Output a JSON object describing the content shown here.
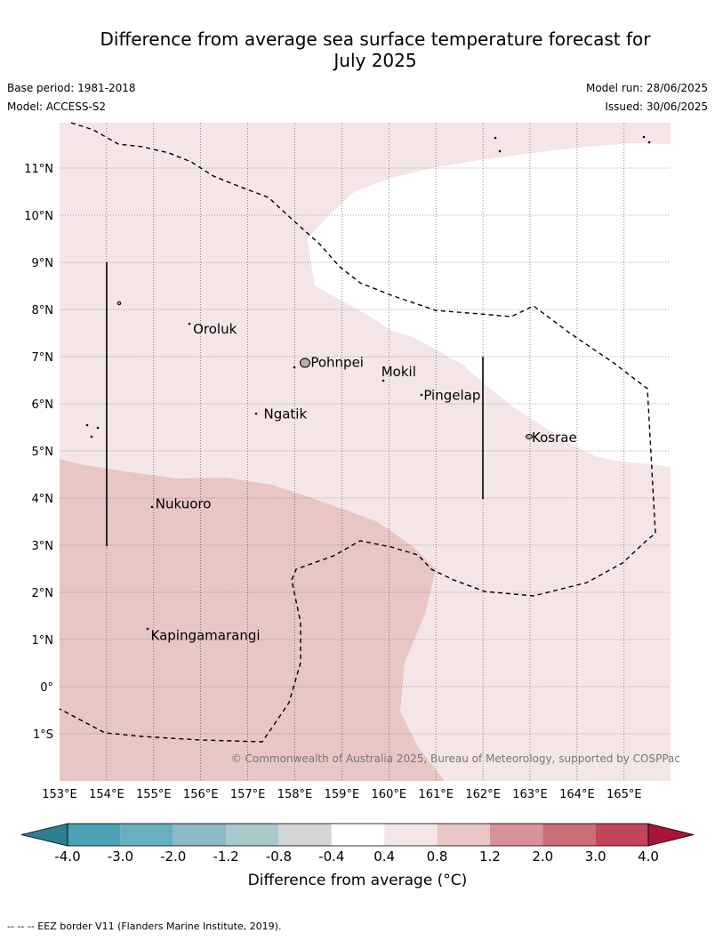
{
  "title_line1": "Difference from average sea surface temperature forecast for",
  "title_line2": "July 2025",
  "base_period": "Base period: 1981-2018",
  "model": "Model: ACCESS-S2",
  "model_run": "Model run: 28/06/2025",
  "issued": "Issued: 30/06/2025",
  "copyright": "© Commonwealth of Australia 2025, Bureau of Meteorology, supported by COSPPac",
  "lat_labels": [
    "11°N",
    "10°N",
    "9°N",
    "8°N",
    "7°N",
    "6°N",
    "5°N",
    "4°N",
    "3°N",
    "2°N",
    "1°N",
    "0°",
    "1°S"
  ],
  "lon_labels": [
    "153°E",
    "154°E",
    "155°E",
    "156°E",
    "157°E",
    "158°E",
    "159°E",
    "160°E",
    "161°E",
    "162°E",
    "163°E",
    "164°E",
    "165°E"
  ],
  "places": [
    {
      "name": "Oroluk",
      "lon": 155.8,
      "lat": 7.6
    },
    {
      "name": "Pohnpei",
      "lon": 158.3,
      "lat": 6.9
    },
    {
      "name": "Mokil",
      "lon": 159.8,
      "lat": 6.7
    },
    {
      "name": "Pingelap",
      "lon": 160.7,
      "lat": 6.2
    },
    {
      "name": "Ngatik",
      "lon": 157.3,
      "lat": 5.8
    },
    {
      "name": "Kosrae",
      "lon": 163.0,
      "lat": 5.3
    },
    {
      "name": "Nukuoro",
      "lon": 155.0,
      "lat": 3.9
    },
    {
      "name": "Kapingamarangi",
      "lon": 154.9,
      "lat": 1.1
    }
  ],
  "legend": {
    "label": "Difference from average (°C)",
    "ticks": [
      "-4.0",
      "-3.0",
      "-2.0",
      "-1.2",
      "-0.8",
      "-0.4",
      "0.4",
      "0.8",
      "1.2",
      "2.0",
      "3.0",
      "4.0"
    ],
    "colors": [
      "#2e7f90",
      "#4aa3b4",
      "#68afbf",
      "#8cbac6",
      "#a9c9cd",
      "#d4d6d6",
      "#ffffff",
      "#f4e6e6",
      "#e8c6c3",
      "#d8939a",
      "#cc6d78",
      "#c1465b",
      "#a8153b"
    ]
  },
  "footer": "-- -- -- EEZ border V11 (Flanders Marine Institute, 2019)."
}
